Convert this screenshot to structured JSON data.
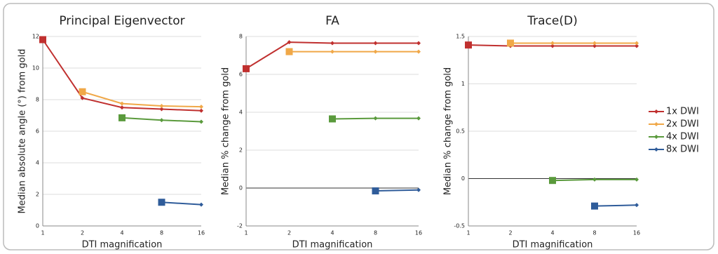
{
  "legend": [
    {
      "name": "1x DWI",
      "color": "#c0302f"
    },
    {
      "name": "2x DWI",
      "color": "#f0a848"
    },
    {
      "name": "4x DWI",
      "color": "#5a9a3c"
    },
    {
      "name": "8x DWI",
      "color": "#2f5c9a"
    }
  ],
  "chart_data": [
    {
      "type": "line",
      "title": "Principal Eigenvector",
      "x_label": "DTI magnification",
      "y_label": "Median absolute angle (°) from gold",
      "categories": [
        "1",
        "2",
        "4",
        "8",
        "16"
      ],
      "ylim": [
        0,
        12
      ],
      "yticks": [
        0,
        2,
        4,
        6,
        8,
        10,
        12
      ],
      "grid": true,
      "series": [
        {
          "values": [
            11.8,
            8.1,
            7.5,
            7.4,
            7.3
          ]
        },
        {
          "values": [
            null,
            8.5,
            7.75,
            7.6,
            7.55
          ]
        },
        {
          "values": [
            null,
            null,
            6.85,
            6.7,
            6.6
          ]
        },
        {
          "values": [
            null,
            null,
            null,
            1.5,
            1.35
          ]
        }
      ]
    },
    {
      "type": "line",
      "title": "FA",
      "x_label": "DTI magnification",
      "y_label": "Median % change from gold",
      "categories": [
        "1",
        "2",
        "4",
        "8",
        "16"
      ],
      "ylim": [
        -2,
        8
      ],
      "yticks": [
        -2,
        0,
        2,
        4,
        6,
        8
      ],
      "grid": true,
      "series": [
        {
          "values": [
            6.3,
            7.7,
            7.65,
            7.65,
            7.65
          ]
        },
        {
          "values": [
            null,
            7.2,
            7.2,
            7.2,
            7.2
          ]
        },
        {
          "values": [
            null,
            null,
            3.65,
            3.68,
            3.68
          ]
        },
        {
          "values": [
            null,
            null,
            null,
            -0.15,
            -0.1
          ]
        }
      ]
    },
    {
      "type": "line",
      "title": "Trace(D)",
      "x_label": "DTI magnification",
      "y_label": "Median % change from gold",
      "categories": [
        "1",
        "2",
        "4",
        "8",
        "16"
      ],
      "ylim": [
        -0.5,
        1.5
      ],
      "yticks": [
        -0.5,
        0,
        0.5,
        1,
        1.5
      ],
      "grid": true,
      "series": [
        {
          "values": [
            1.41,
            1.4,
            1.4,
            1.4,
            1.4
          ]
        },
        {
          "values": [
            null,
            1.43,
            1.43,
            1.43,
            1.43
          ]
        },
        {
          "values": [
            null,
            null,
            -0.02,
            -0.01,
            -0.01
          ]
        },
        {
          "values": [
            null,
            null,
            null,
            -0.29,
            -0.28
          ]
        }
      ]
    }
  ]
}
